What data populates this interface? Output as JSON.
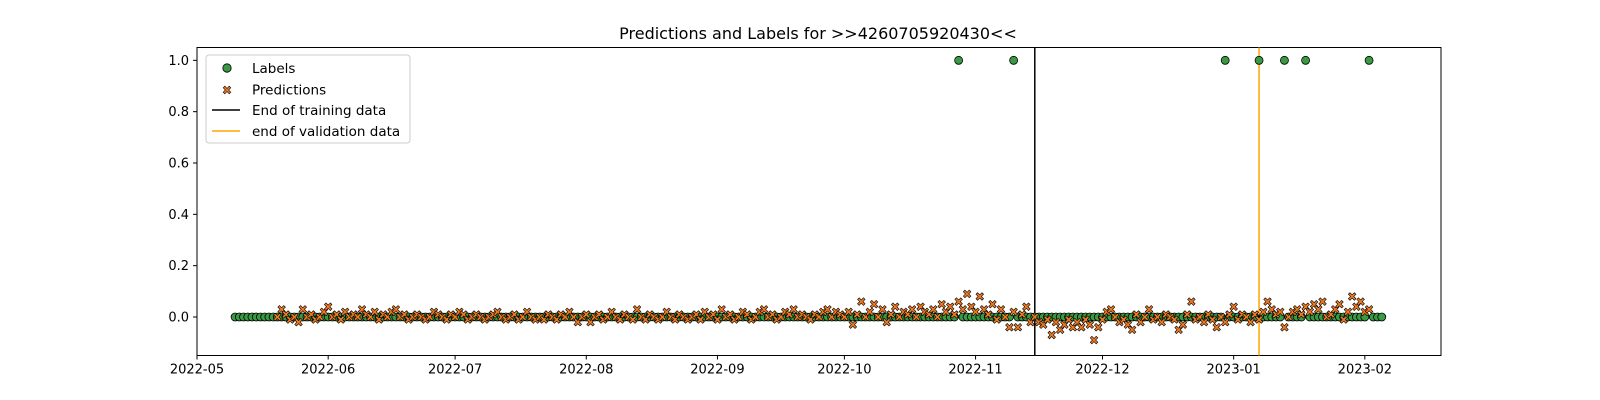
{
  "chart_data": {
    "type": "scatter",
    "title": "Predictions and Labels for >>4260705920430<<",
    "xlabel": "",
    "ylabel": "",
    "x_axis": {
      "type": "date",
      "range": [
        "2022-05-01",
        "2023-02-19"
      ]
    },
    "ylim": [
      -0.15,
      1.05
    ],
    "yticks": [
      0.0,
      0.2,
      0.4,
      0.6,
      0.8,
      1.0
    ],
    "ytick_labels": [
      "0.0",
      "0.2",
      "0.4",
      "0.6",
      "0.8",
      "1.0"
    ],
    "xticks": [
      "2022-05-01",
      "2022-06-01",
      "2022-07-01",
      "2022-08-01",
      "2022-09-01",
      "2022-10-01",
      "2022-11-01",
      "2022-12-01",
      "2023-01-01",
      "2023-02-01"
    ],
    "xtick_labels": [
      "2022-05",
      "2022-06",
      "2022-07",
      "2022-08",
      "2022-09",
      "2022-10",
      "2022-11",
      "2022-12",
      "2023-01",
      "2023-02"
    ],
    "grid": false,
    "legend": {
      "position": "top-left",
      "entries": [
        "Labels",
        "Predictions",
        "End of training data",
        "end of validation data"
      ]
    },
    "colors": {
      "labels": "#3a9a44",
      "predictions": "#f07a22",
      "training_line": "#000000",
      "validation_line": "#ffa500"
    },
    "vlines": [
      {
        "name": "End of training data",
        "date": "2022-11-15",
        "color": "#000000"
      },
      {
        "name": "end of validation data",
        "date": "2023-01-07",
        "color": "#ffa500"
      }
    ],
    "series": [
      {
        "name": "Labels",
        "marker": "circle",
        "date_range": [
          "2022-05-10",
          "2023-02-05"
        ],
        "default_value": 0.0,
        "positive_dates": [
          "2022-10-28",
          "2022-11-10",
          "2022-12-30",
          "2023-01-07",
          "2023-01-13",
          "2023-01-18",
          "2023-02-02"
        ],
        "positive_value": 1.0
      },
      {
        "name": "Predictions",
        "marker": "x",
        "points": [
          [
            "2022-05-20",
            0.0
          ],
          [
            "2022-05-21",
            0.03
          ],
          [
            "2022-05-22",
            0.01
          ],
          [
            "2022-05-23",
            -0.01
          ],
          [
            "2022-05-24",
            0.0
          ],
          [
            "2022-05-25",
            -0.02
          ],
          [
            "2022-05-26",
            0.03
          ],
          [
            "2022-05-27",
            0.0
          ],
          [
            "2022-05-28",
            0.01
          ],
          [
            "2022-05-29",
            -0.01
          ],
          [
            "2022-05-30",
            0.0
          ],
          [
            "2022-05-31",
            0.02
          ],
          [
            "2022-06-01",
            0.04
          ],
          [
            "2022-06-02",
            0.0
          ],
          [
            "2022-06-03",
            0.01
          ],
          [
            "2022-06-04",
            -0.01
          ],
          [
            "2022-06-05",
            0.02
          ],
          [
            "2022-06-06",
            0.0
          ],
          [
            "2022-06-07",
            0.01
          ],
          [
            "2022-06-08",
            0.0
          ],
          [
            "2022-06-09",
            0.03
          ],
          [
            "2022-06-10",
            0.01
          ],
          [
            "2022-06-11",
            0.0
          ],
          [
            "2022-06-12",
            0.02
          ],
          [
            "2022-06-13",
            -0.01
          ],
          [
            "2022-06-14",
            0.01
          ],
          [
            "2022-06-15",
            0.0
          ],
          [
            "2022-06-16",
            0.02
          ],
          [
            "2022-06-17",
            0.03
          ],
          [
            "2022-06-18",
            0.0
          ],
          [
            "2022-06-19",
            0.01
          ],
          [
            "2022-06-20",
            -0.01
          ],
          [
            "2022-06-21",
            0.0
          ],
          [
            "2022-06-22",
            0.01
          ],
          [
            "2022-06-23",
            0.0
          ],
          [
            "2022-06-24",
            -0.01
          ],
          [
            "2022-06-25",
            0.0
          ],
          [
            "2022-06-26",
            0.02
          ],
          [
            "2022-06-27",
            0.01
          ],
          [
            "2022-06-28",
            0.0
          ],
          [
            "2022-06-29",
            -0.01
          ],
          [
            "2022-06-30",
            0.01
          ],
          [
            "2022-07-01",
            0.0
          ],
          [
            "2022-07-02",
            0.02
          ],
          [
            "2022-07-03",
            0.01
          ],
          [
            "2022-07-04",
            -0.01
          ],
          [
            "2022-07-05",
            0.0
          ],
          [
            "2022-07-06",
            0.01
          ],
          [
            "2022-07-07",
            0.0
          ],
          [
            "2022-07-08",
            -0.01
          ],
          [
            "2022-07-09",
            0.0
          ],
          [
            "2022-07-10",
            0.01
          ],
          [
            "2022-07-11",
            0.02
          ],
          [
            "2022-07-12",
            0.0
          ],
          [
            "2022-07-13",
            -0.01
          ],
          [
            "2022-07-14",
            0.0
          ],
          [
            "2022-07-15",
            0.01
          ],
          [
            "2022-07-16",
            -0.01
          ],
          [
            "2022-07-17",
            0.0
          ],
          [
            "2022-07-18",
            0.02
          ],
          [
            "2022-07-19",
            0.0
          ],
          [
            "2022-07-20",
            -0.01
          ],
          [
            "2022-07-21",
            0.0
          ],
          [
            "2022-07-22",
            -0.01
          ],
          [
            "2022-07-23",
            0.01
          ],
          [
            "2022-07-24",
            0.0
          ],
          [
            "2022-07-25",
            -0.01
          ],
          [
            "2022-07-26",
            0.01
          ],
          [
            "2022-07-27",
            0.0
          ],
          [
            "2022-07-28",
            0.02
          ],
          [
            "2022-07-29",
            0.0
          ],
          [
            "2022-07-30",
            -0.02
          ],
          [
            "2022-07-31",
            0.0
          ],
          [
            "2022-08-01",
            0.01
          ],
          [
            "2022-08-02",
            -0.02
          ],
          [
            "2022-08-03",
            0.0
          ],
          [
            "2022-08-04",
            0.01
          ],
          [
            "2022-08-05",
            -0.01
          ],
          [
            "2022-08-06",
            0.0
          ],
          [
            "2022-08-07",
            0.02
          ],
          [
            "2022-08-08",
            0.0
          ],
          [
            "2022-08-09",
            -0.01
          ],
          [
            "2022-08-10",
            0.01
          ],
          [
            "2022-08-11",
            0.0
          ],
          [
            "2022-08-12",
            -0.01
          ],
          [
            "2022-08-13",
            0.03
          ],
          [
            "2022-08-14",
            0.0
          ],
          [
            "2022-08-15",
            -0.01
          ],
          [
            "2022-08-16",
            0.01
          ],
          [
            "2022-08-17",
            0.0
          ],
          [
            "2022-08-18",
            -0.01
          ],
          [
            "2022-08-19",
            0.0
          ],
          [
            "2022-08-20",
            0.02
          ],
          [
            "2022-08-21",
            0.0
          ],
          [
            "2022-08-22",
            -0.01
          ],
          [
            "2022-08-23",
            0.01
          ],
          [
            "2022-08-24",
            0.0
          ],
          [
            "2022-08-25",
            -0.01
          ],
          [
            "2022-08-26",
            0.0
          ],
          [
            "2022-08-27",
            0.01
          ],
          [
            "2022-08-28",
            -0.01
          ],
          [
            "2022-08-29",
            0.02
          ],
          [
            "2022-08-30",
            0.0
          ],
          [
            "2022-08-31",
            0.01
          ],
          [
            "2022-09-01",
            -0.01
          ],
          [
            "2022-09-02",
            0.03
          ],
          [
            "2022-09-03",
            0.0
          ],
          [
            "2022-09-04",
            0.01
          ],
          [
            "2022-09-05",
            -0.01
          ],
          [
            "2022-09-06",
            0.0
          ],
          [
            "2022-09-07",
            0.02
          ],
          [
            "2022-09-08",
            0.01
          ],
          [
            "2022-09-09",
            -0.01
          ],
          [
            "2022-09-10",
            0.0
          ],
          [
            "2022-09-11",
            0.02
          ],
          [
            "2022-09-12",
            0.03
          ],
          [
            "2022-09-13",
            0.0
          ],
          [
            "2022-09-14",
            0.01
          ],
          [
            "2022-09-15",
            -0.01
          ],
          [
            "2022-09-16",
            0.0
          ],
          [
            "2022-09-17",
            0.02
          ],
          [
            "2022-09-18",
            0.01
          ],
          [
            "2022-09-19",
            0.03
          ],
          [
            "2022-09-20",
            0.0
          ],
          [
            "2022-09-21",
            0.01
          ],
          [
            "2022-09-22",
            0.0
          ],
          [
            "2022-09-23",
            -0.01
          ],
          [
            "2022-09-24",
            0.01
          ],
          [
            "2022-09-25",
            0.0
          ],
          [
            "2022-09-26",
            0.02
          ],
          [
            "2022-09-27",
            0.03
          ],
          [
            "2022-09-28",
            0.0
          ],
          [
            "2022-09-29",
            0.02
          ],
          [
            "2022-09-30",
            0.01
          ],
          [
            "2022-10-01",
            0.0
          ],
          [
            "2022-10-02",
            0.02
          ],
          [
            "2022-10-03",
            -0.03
          ],
          [
            "2022-10-04",
            0.01
          ],
          [
            "2022-10-05",
            0.06
          ],
          [
            "2022-10-06",
            0.0
          ],
          [
            "2022-10-07",
            0.02
          ],
          [
            "2022-10-08",
            0.05
          ],
          [
            "2022-10-09",
            0.0
          ],
          [
            "2022-10-10",
            0.03
          ],
          [
            "2022-10-11",
            -0.02
          ],
          [
            "2022-10-12",
            0.01
          ],
          [
            "2022-10-13",
            0.04
          ],
          [
            "2022-10-14",
            0.0
          ],
          [
            "2022-10-15",
            0.02
          ],
          [
            "2022-10-16",
            0.01
          ],
          [
            "2022-10-17",
            0.03
          ],
          [
            "2022-10-18",
            0.0
          ],
          [
            "2022-10-19",
            0.04
          ],
          [
            "2022-10-20",
            0.02
          ],
          [
            "2022-10-21",
            0.01
          ],
          [
            "2022-10-22",
            0.03
          ],
          [
            "2022-10-23",
            0.0
          ],
          [
            "2022-10-24",
            0.05
          ],
          [
            "2022-10-25",
            0.02
          ],
          [
            "2022-10-26",
            0.04
          ],
          [
            "2022-10-27",
            0.01
          ],
          [
            "2022-10-28",
            0.06
          ],
          [
            "2022-10-29",
            0.03
          ],
          [
            "2022-10-30",
            0.09
          ],
          [
            "2022-10-31",
            0.04
          ],
          [
            "2022-11-01",
            0.02
          ],
          [
            "2022-11-02",
            0.08
          ],
          [
            "2022-11-03",
            0.03
          ],
          [
            "2022-11-04",
            0.01
          ],
          [
            "2022-11-05",
            0.05
          ],
          [
            "2022-11-06",
            -0.01
          ],
          [
            "2022-11-07",
            0.03
          ],
          [
            "2022-11-08",
            0.0
          ],
          [
            "2022-11-09",
            -0.04
          ],
          [
            "2022-11-10",
            0.02
          ],
          [
            "2022-11-11",
            -0.04
          ],
          [
            "2022-11-12",
            0.01
          ],
          [
            "2022-11-13",
            0.04
          ],
          [
            "2022-11-14",
            -0.02
          ],
          [
            "2022-11-15",
            0.0
          ],
          [
            "2022-11-16",
            -0.02
          ],
          [
            "2022-11-17",
            -0.03
          ],
          [
            "2022-11-18",
            -0.01
          ],
          [
            "2022-11-19",
            -0.07
          ],
          [
            "2022-11-20",
            -0.02
          ],
          [
            "2022-11-21",
            -0.05
          ],
          [
            "2022-11-22",
            -0.03
          ],
          [
            "2022-11-23",
            -0.01
          ],
          [
            "2022-11-24",
            -0.04
          ],
          [
            "2022-11-25",
            -0.02
          ],
          [
            "2022-11-26",
            -0.04
          ],
          [
            "2022-11-27",
            -0.01
          ],
          [
            "2022-11-28",
            -0.03
          ],
          [
            "2022-11-29",
            -0.09
          ],
          [
            "2022-11-30",
            -0.04
          ],
          [
            "2022-12-01",
            -0.01
          ],
          [
            "2022-12-02",
            0.02
          ],
          [
            "2022-12-03",
            0.03
          ],
          [
            "2022-12-04",
            0.0
          ],
          [
            "2022-12-05",
            -0.02
          ],
          [
            "2022-12-06",
            -0.01
          ],
          [
            "2022-12-07",
            -0.03
          ],
          [
            "2022-12-08",
            -0.05
          ],
          [
            "2022-12-09",
            0.01
          ],
          [
            "2022-12-10",
            -0.02
          ],
          [
            "2022-12-11",
            0.0
          ],
          [
            "2022-12-12",
            0.03
          ],
          [
            "2022-12-13",
            -0.01
          ],
          [
            "2022-12-14",
            0.0
          ],
          [
            "2022-12-15",
            -0.02
          ],
          [
            "2022-12-16",
            0.01
          ],
          [
            "2022-12-17",
            0.0
          ],
          [
            "2022-12-18",
            -0.01
          ],
          [
            "2022-12-19",
            -0.05
          ],
          [
            "2022-12-20",
            -0.03
          ],
          [
            "2022-12-21",
            0.01
          ],
          [
            "2022-12-22",
            0.06
          ],
          [
            "2022-12-23",
            -0.01
          ],
          [
            "2022-12-24",
            0.0
          ],
          [
            "2022-12-25",
            -0.02
          ],
          [
            "2022-12-26",
            0.01
          ],
          [
            "2022-12-27",
            -0.01
          ],
          [
            "2022-12-28",
            -0.04
          ],
          [
            "2022-12-29",
            0.0
          ],
          [
            "2022-12-30",
            -0.02
          ],
          [
            "2022-12-31",
            0.01
          ],
          [
            "2023-01-01",
            0.04
          ],
          [
            "2023-01-02",
            -0.01
          ],
          [
            "2023-01-03",
            0.01
          ],
          [
            "2023-01-04",
            0.0
          ],
          [
            "2023-01-05",
            -0.02
          ],
          [
            "2023-01-06",
            0.01
          ],
          [
            "2023-01-07",
            -0.01
          ],
          [
            "2023-01-08",
            0.02
          ],
          [
            "2023-01-09",
            0.06
          ],
          [
            "2023-01-10",
            0.03
          ],
          [
            "2023-01-11",
            0.01
          ],
          [
            "2023-01-12",
            0.02
          ],
          [
            "2023-01-13",
            -0.04
          ],
          [
            "2023-01-14",
            0.0
          ],
          [
            "2023-01-15",
            0.02
          ],
          [
            "2023-01-16",
            0.03
          ],
          [
            "2023-01-17",
            0.01
          ],
          [
            "2023-01-18",
            0.04
          ],
          [
            "2023-01-19",
            0.02
          ],
          [
            "2023-01-20",
            0.05
          ],
          [
            "2023-01-21",
            0.03
          ],
          [
            "2023-01-22",
            0.06
          ],
          [
            "2023-01-23",
            0.0
          ],
          [
            "2023-01-24",
            0.01
          ],
          [
            "2023-01-25",
            0.03
          ],
          [
            "2023-01-26",
            0.05
          ],
          [
            "2023-01-27",
            -0.01
          ],
          [
            "2023-01-28",
            0.02
          ],
          [
            "2023-01-29",
            0.08
          ],
          [
            "2023-01-30",
            0.04
          ],
          [
            "2023-01-31",
            0.06
          ],
          [
            "2023-02-01",
            0.02
          ],
          [
            "2023-02-02",
            0.03
          ]
        ]
      }
    ]
  }
}
